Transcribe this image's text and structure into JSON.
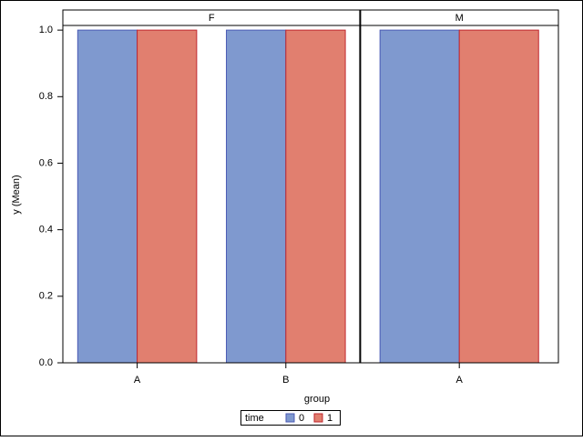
{
  "chart_data": {
    "type": "bar",
    "ylabel": "y (Mean)",
    "xlabel": "group",
    "ylim": [
      0,
      1.014
    ],
    "yticks": [
      {
        "value": 0,
        "label": "0.0"
      },
      0.2,
      0.4,
      0.6,
      0.8,
      {
        "value": 1,
        "label": "1.0"
      }
    ],
    "legend": {
      "title": "time",
      "entries": [
        {
          "name": "0",
          "color": "#7f99cf",
          "edge": "#4b5bb5"
        },
        {
          "name": "1",
          "color": "#e17f6f",
          "edge": "#c0262e"
        }
      ]
    },
    "panels": [
      {
        "title": "F",
        "categories": [
          "A",
          "B"
        ],
        "series": [
          {
            "values": [
              1,
              1
            ]
          },
          {
            "values": [
              1,
              1
            ]
          }
        ]
      },
      {
        "title": "M",
        "categories": [
          "A"
        ],
        "series": [
          {
            "values": [
              1
            ]
          },
          {
            "values": [
              1
            ]
          }
        ]
      }
    ]
  }
}
